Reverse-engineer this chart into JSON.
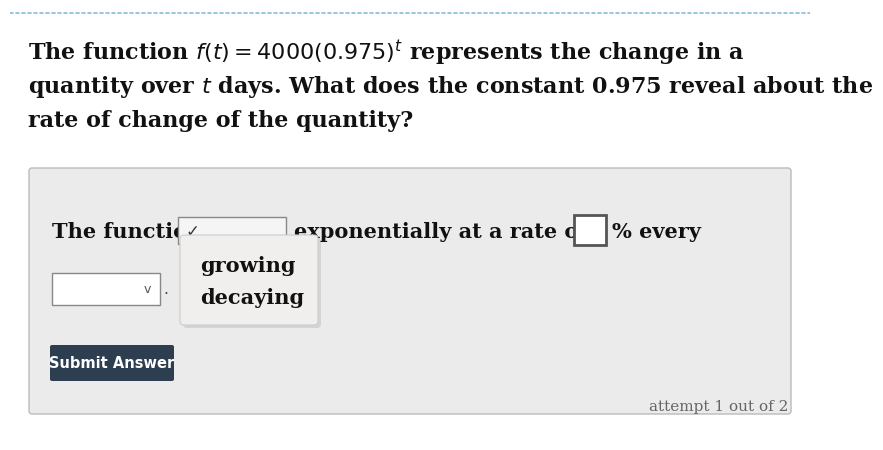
{
  "bg_color": "#ffffff",
  "panel_color": "#ebebeb",
  "panel_border_color": "#cccccc",
  "top_border_color": "#88bbdd",
  "submit_bg_color": "#2d3e50",
  "submit_text_color": "#ffffff",
  "text_color": "#111111",
  "gray_text_color": "#666666",
  "question_line1": "The function $f(t) = 4000(0.975)^t$ represents the change in a",
  "question_line2": "quantity over $t$ days. What does the constant 0.975 reveal about the",
  "question_line3": "rate of change of the quantity?",
  "answer_prefix": "The function is",
  "answer_middle": "exponentially at a rate of",
  "answer_suffix": "% every",
  "dropdown_items": [
    "growing",
    "decaying"
  ],
  "submit_label": "Submit Answer",
  "attempt_text": "attempt 1 out of 2",
  "q_fontsize": 16,
  "ans_fontsize": 15,
  "popup_fontsize": 15,
  "small_fontsize": 11
}
